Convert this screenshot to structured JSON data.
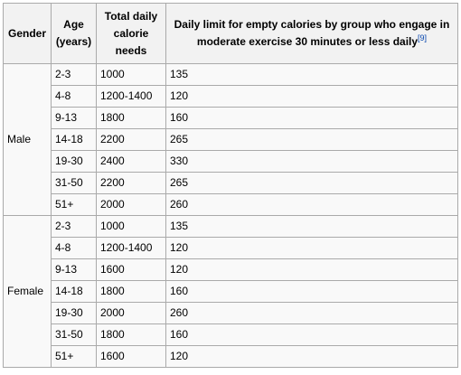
{
  "table": {
    "headers": {
      "gender": "Gender",
      "age": "Age (years)",
      "total": "Total daily calorie needs",
      "limit": "Daily limit for empty calories by group who engage in moderate exercise 30 minutes or less daily",
      "ref": "[9]"
    },
    "groups": [
      {
        "gender": "Male",
        "rows": [
          {
            "age": "2-3",
            "calories": "1000",
            "limit": "135"
          },
          {
            "age": "4-8",
            "calories": "1200-1400",
            "limit": "120"
          },
          {
            "age": "9-13",
            "calories": "1800",
            "limit": "160"
          },
          {
            "age": "14-18",
            "calories": "2200",
            "limit": "265"
          },
          {
            "age": "19-30",
            "calories": "2400",
            "limit": "330"
          },
          {
            "age": "31-50",
            "calories": "2200",
            "limit": "265"
          },
          {
            "age": "51+",
            "calories": "2000",
            "limit": "260"
          }
        ]
      },
      {
        "gender": "Female",
        "rows": [
          {
            "age": "2-3",
            "calories": "1000",
            "limit": "135"
          },
          {
            "age": "4-8",
            "calories": "1200-1400",
            "limit": "120"
          },
          {
            "age": "9-13",
            "calories": "1600",
            "limit": "120"
          },
          {
            "age": "14-18",
            "calories": "1800",
            "limit": "160"
          },
          {
            "age": "19-30",
            "calories": "2000",
            "limit": "260"
          },
          {
            "age": "31-50",
            "calories": "1800",
            "limit": "160"
          },
          {
            "age": "51+",
            "calories": "1600",
            "limit": "120"
          }
        ]
      }
    ]
  }
}
